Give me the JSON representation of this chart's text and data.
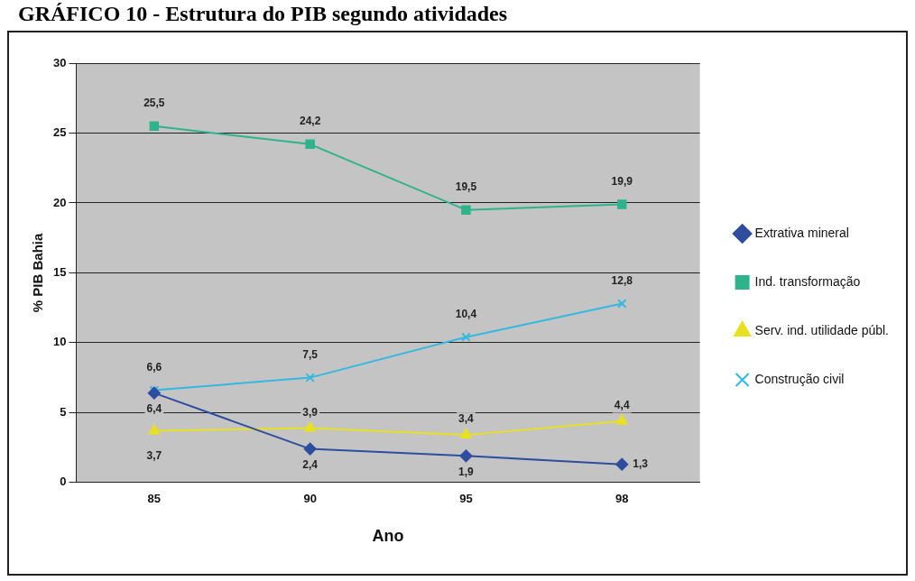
{
  "chart_data": {
    "type": "line",
    "title": "GRÁFICO 10 - Estrutura do PIB segundo atividades",
    "xlabel": "Ano",
    "ylabel": "% PIB Bahia",
    "categories": [
      "85",
      "90",
      "95",
      "98"
    ],
    "series": [
      {
        "name": "Extrativa mineral",
        "color": "#2e4d9e",
        "marker": "diamond",
        "values": [
          6.4,
          2.4,
          1.9,
          1.3
        ],
        "value_labels": [
          "6,4",
          "2,4",
          "1,9",
          "1,3"
        ]
      },
      {
        "name": "Ind. transformação",
        "color": "#2fb38a",
        "marker": "square",
        "values": [
          25.5,
          24.2,
          19.5,
          19.9
        ],
        "value_labels": [
          "25,5",
          "24,2",
          "19,5",
          "19,9"
        ]
      },
      {
        "name": "Serv. ind. utilidade públ.",
        "color": "#e8e020",
        "marker": "triangle",
        "values": [
          3.7,
          3.9,
          3.4,
          4.4
        ],
        "value_labels": [
          "3,7",
          "3,9",
          "3,4",
          "4,4"
        ]
      },
      {
        "name": "Construção civil",
        "color": "#35b8e0",
        "marker": "cross",
        "values": [
          6.6,
          7.5,
          10.4,
          12.8
        ],
        "value_labels": [
          "6,6",
          "7,5",
          "10,4",
          "12,8"
        ]
      }
    ],
    "ylim": [
      0,
      30
    ],
    "yticks": [
      0,
      5,
      10,
      15,
      20,
      25,
      30
    ],
    "grid": "y",
    "legend": "right"
  }
}
